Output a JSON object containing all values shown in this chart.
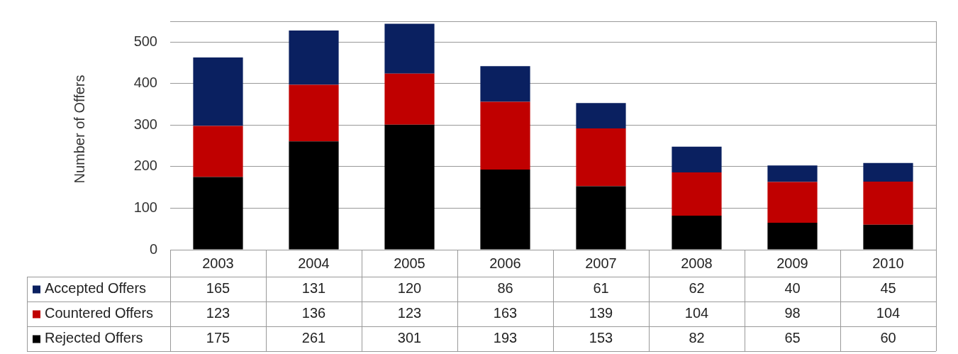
{
  "chart_data": {
    "type": "bar",
    "stacked": true,
    "ylabel": "Number of Offers",
    "categories": [
      "2003",
      "2004",
      "2005",
      "2006",
      "2007",
      "2008",
      "2009",
      "2010"
    ],
    "series": [
      {
        "name": "Rejected Offers",
        "color": "#000000",
        "values": [
          175,
          261,
          301,
          193,
          153,
          82,
          65,
          60
        ]
      },
      {
        "name": "Countered Offers",
        "color": "#c00000",
        "values": [
          123,
          136,
          123,
          163,
          139,
          104,
          98,
          104
        ]
      },
      {
        "name": "Accepted Offers",
        "color": "#0a2060",
        "values": [
          165,
          131,
          120,
          86,
          61,
          62,
          40,
          45
        ]
      }
    ],
    "ylim": [
      0,
      550
    ],
    "yticks": [
      0,
      100,
      200,
      300,
      400,
      500
    ],
    "grid": "y",
    "legend": "bottom",
    "data_labels": true
  }
}
